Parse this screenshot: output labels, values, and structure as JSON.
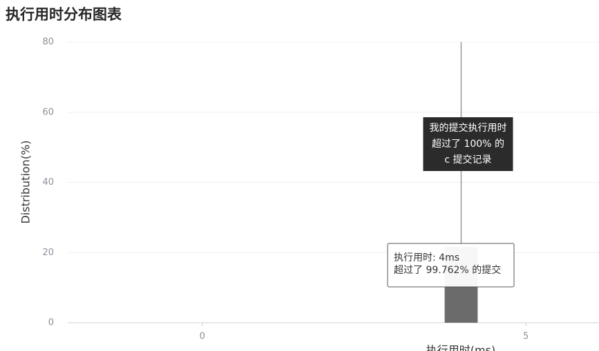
{
  "chart_data": {
    "type": "bar",
    "title": "执行用时分布图表",
    "x_label": "执行用时(ms)",
    "y_label": "Distribution(%)",
    "x": [
      4
    ],
    "values": [
      21.6
    ],
    "color": "#6b6b6b",
    "xlim": [
      -2.08,
      6.13
    ],
    "xticks": [
      0,
      5
    ],
    "ylim": [
      0,
      80
    ],
    "yticks": [
      0,
      20,
      40,
      60,
      80
    ],
    "grid": true,
    "highlight_x": 4,
    "annotations": {
      "my_submission": [
        "我的提交执行用时",
        "超过了 100% 的",
        "c 提交记录"
      ],
      "hover": [
        "执行用时: 4ms",
        "超过了 99.762% 的提交"
      ]
    }
  }
}
